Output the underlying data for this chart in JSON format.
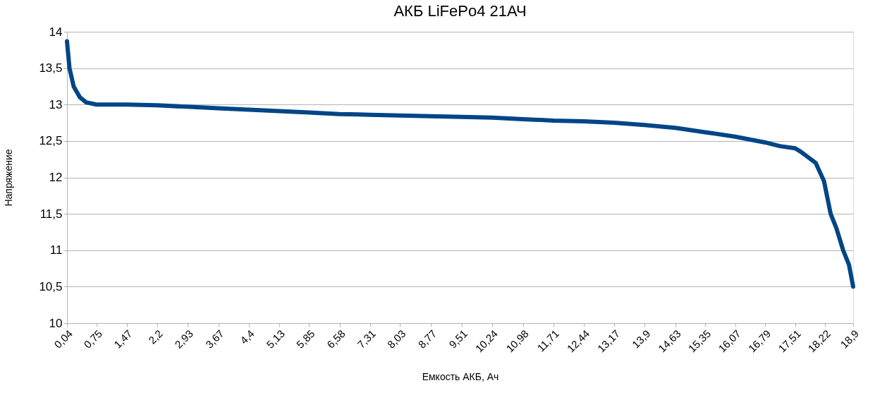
{
  "chart_data": {
    "type": "line",
    "title": "АКБ LiFePo4 21АЧ",
    "xlabel": "Емкость АКБ, Ач",
    "ylabel": "Напряжение",
    "x": [
      0.04,
      0.1,
      0.2,
      0.35,
      0.5,
      0.75,
      1.47,
      2.2,
      2.93,
      3.67,
      4.4,
      5.13,
      5.85,
      6.58,
      7.31,
      8.03,
      8.77,
      9.51,
      10.24,
      10.98,
      11.71,
      12.44,
      13.17,
      13.9,
      14.63,
      15.35,
      16.07,
      16.79,
      17.14,
      17.51,
      17.65,
      18.0,
      18.2,
      18.36,
      18.5,
      18.66,
      18.8,
      18.9
    ],
    "series": [
      {
        "color": "#004586",
        "values": [
          13.87,
          13.5,
          13.25,
          13.1,
          13.03,
          13.0,
          13.0,
          12.99,
          12.97,
          12.95,
          12.93,
          12.91,
          12.89,
          12.87,
          12.86,
          12.85,
          12.84,
          12.83,
          12.82,
          12.8,
          12.78,
          12.77,
          12.75,
          12.72,
          12.68,
          12.62,
          12.56,
          12.48,
          12.43,
          12.4,
          12.35,
          12.2,
          11.95,
          11.5,
          11.3,
          11.0,
          10.8,
          10.5
        ]
      }
    ],
    "xlim": [
      0.04,
      18.9
    ],
    "xticks": [
      {
        "value": 0.04,
        "label": "0,04"
      },
      {
        "value": 0.75,
        "label": "0,75"
      },
      {
        "value": 1.47,
        "label": "1,47"
      },
      {
        "value": 2.2,
        "label": "2,2"
      },
      {
        "value": 2.93,
        "label": "2,93"
      },
      {
        "value": 3.67,
        "label": "3,67"
      },
      {
        "value": 4.4,
        "label": "4,4"
      },
      {
        "value": 5.13,
        "label": "5,13"
      },
      {
        "value": 5.85,
        "label": "5,85"
      },
      {
        "value": 6.58,
        "label": "6,58"
      },
      {
        "value": 7.31,
        "label": "7,31"
      },
      {
        "value": 8.03,
        "label": "8,03"
      },
      {
        "value": 8.77,
        "label": "8,77"
      },
      {
        "value": 9.51,
        "label": "9,51"
      },
      {
        "value": 10.24,
        "label": "10,24"
      },
      {
        "value": 10.98,
        "label": "10,98"
      },
      {
        "value": 11.71,
        "label": "11,71"
      },
      {
        "value": 12.44,
        "label": "12,44"
      },
      {
        "value": 13.17,
        "label": "13,17"
      },
      {
        "value": 13.9,
        "label": "13,9"
      },
      {
        "value": 14.63,
        "label": "14,63"
      },
      {
        "value": 15.35,
        "label": "15,35"
      },
      {
        "value": 16.07,
        "label": "16,07"
      },
      {
        "value": 16.79,
        "label": "16,79"
      },
      {
        "value": 17.51,
        "label": "17,51"
      },
      {
        "value": 18.22,
        "label": "18,22"
      },
      {
        "value": 18.9,
        "label": "18,9"
      }
    ],
    "ylim": [
      10,
      14
    ],
    "yticks": [
      10,
      {
        "value": 10.5,
        "label": "10,5"
      },
      11,
      {
        "value": 11.5,
        "label": "11,5"
      },
      12,
      {
        "value": 12.5,
        "label": "12,5"
      },
      13,
      {
        "value": 13.5,
        "label": "13,5"
      },
      14
    ],
    "grid": "y",
    "marker": "none",
    "line_style": "solid"
  }
}
